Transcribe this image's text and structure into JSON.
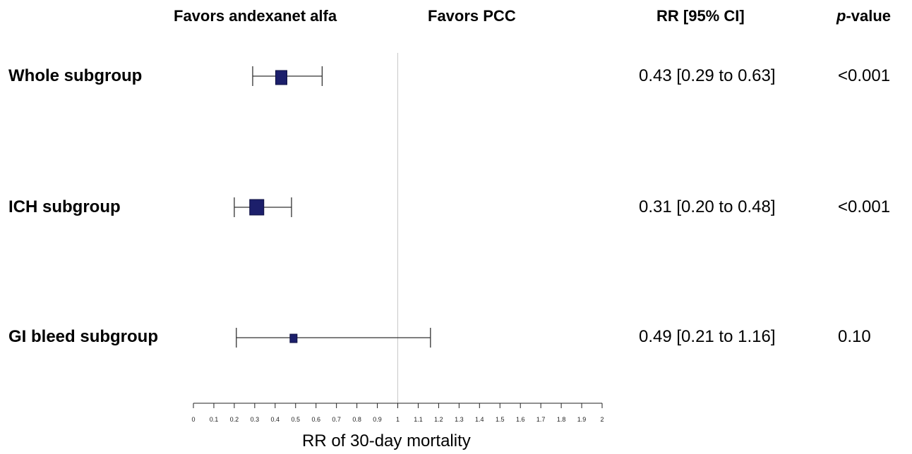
{
  "headers": {
    "favors_left": "Favors andexanet alfa",
    "favors_right": "Favors PCC",
    "rr_ci": "RR [95% CI]",
    "p_value_italic": "p",
    "p_value_rest": "-value"
  },
  "rows": [
    {
      "label": "Whole subgroup",
      "rr_text": "0.43 [0.29 to 0.63]",
      "p_text": "<0.001"
    },
    {
      "label": "ICH subgroup",
      "rr_text": "0.31 [0.20 to 0.48]",
      "p_text": "<0.001"
    },
    {
      "label": "GI bleed subgroup",
      "rr_text": "0.49 [0.21 to 1.16]",
      "p_text": "0.10"
    }
  ],
  "chart_data": {
    "type": "forest",
    "xlabel": "RR of 30-day mortality",
    "xlim": [
      0,
      2
    ],
    "reference_line": 1,
    "ticks": [
      "0",
      "0.1",
      "0.2",
      "0.3",
      "0.4",
      "0.5",
      "0.6",
      "0.7",
      "0.8",
      "0.9",
      "1",
      "1.1",
      "1.2",
      "1.3",
      "1.4",
      "1.5",
      "1.6",
      "1.7",
      "1.8",
      "1.9",
      "2"
    ],
    "series": [
      {
        "name": "Whole subgroup",
        "estimate": 0.43,
        "lower": 0.29,
        "upper": 0.63,
        "weight": "medium"
      },
      {
        "name": "ICH subgroup",
        "estimate": 0.31,
        "lower": 0.2,
        "upper": 0.48,
        "weight": "large"
      },
      {
        "name": "GI bleed subgroup",
        "estimate": 0.49,
        "lower": 0.21,
        "upper": 1.16,
        "weight": "small"
      }
    ],
    "marker_color": "#1c1f6b"
  }
}
